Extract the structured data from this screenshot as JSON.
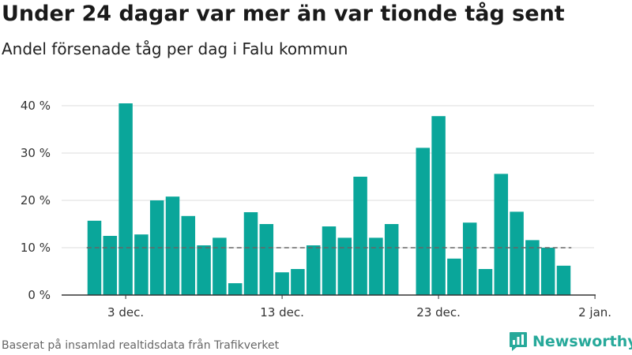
{
  "title": "Under 24 dagar var mer än var tionde tåg sent",
  "subtitle": "Andel försenade tåg per dag i Falu kommun",
  "footer": "Baserat på insamlad realtidsdata från Trafikverket",
  "brand": "Newsworthy",
  "colors": {
    "bar": "#0aa69a",
    "reference_line": "#666666",
    "grid": "#dddddd",
    "brand": "#27a99a"
  },
  "chart_data": {
    "type": "bar",
    "x_start_day": 1,
    "x_tick_labels": [
      {
        "day": 3,
        "label": "3 dec."
      },
      {
        "day": 13,
        "label": "13 dec."
      },
      {
        "day": 23,
        "label": "23 dec."
      },
      {
        "day": 33,
        "label": "2 jan."
      }
    ],
    "values": [
      15.7,
      12.5,
      40.5,
      12.8,
      20.0,
      20.8,
      16.7,
      10.5,
      12.1,
      2.5,
      17.5,
      15.0,
      4.8,
      5.5,
      10.5,
      14.5,
      12.1,
      25.0,
      12.1,
      15.0,
      null,
      31.1,
      37.8,
      7.7,
      15.3,
      5.5,
      25.6,
      17.6,
      11.6,
      10.0,
      6.2
    ],
    "y_ticks": [
      0,
      10,
      20,
      30,
      40
    ],
    "y_tick_suffix": " %",
    "ylim": [
      0,
      42
    ],
    "reference_line": 10,
    "grid": true
  }
}
